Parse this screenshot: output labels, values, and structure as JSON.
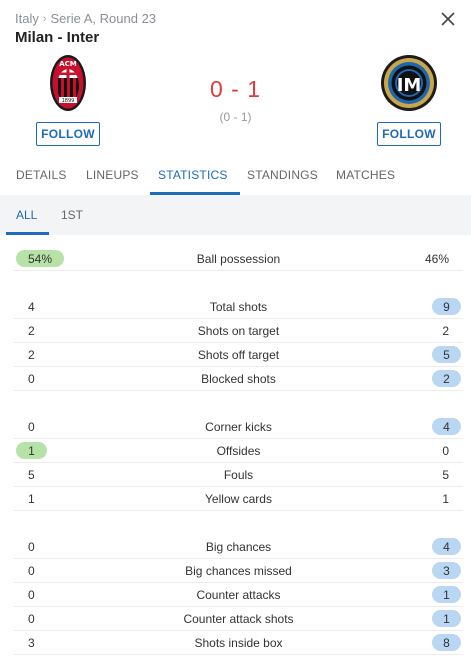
{
  "header": {
    "country": "Italy",
    "competition": "Serie A, Round 23",
    "match_title": "Milan - Inter"
  },
  "score": {
    "main": "0 - 1",
    "halftime": "(0 - 1)"
  },
  "teams": {
    "home": {
      "follow_label": "FOLLOW",
      "logo_text": "ACM",
      "logo_year": "1899"
    },
    "away": {
      "follow_label": "FOLLOW",
      "logo_text": "IM"
    }
  },
  "tabs": [
    {
      "label": "DETAILS"
    },
    {
      "label": "LINEUPS"
    },
    {
      "label": "STATISTICS"
    },
    {
      "label": "STANDINGS"
    },
    {
      "label": "MATCHES"
    }
  ],
  "subtabs": [
    {
      "label": "ALL"
    },
    {
      "label": "1ST"
    }
  ],
  "stats": [
    {
      "label": "Ball possession",
      "home": "54%",
      "away": "46%"
    },
    {
      "label": "Total shots",
      "home": "4",
      "away": "9"
    },
    {
      "label": "Shots on target",
      "home": "2",
      "away": "2"
    },
    {
      "label": "Shots off target",
      "home": "2",
      "away": "5"
    },
    {
      "label": "Blocked shots",
      "home": "0",
      "away": "2"
    },
    {
      "label": "Corner kicks",
      "home": "0",
      "away": "4"
    },
    {
      "label": "Offsides",
      "home": "1",
      "away": "0"
    },
    {
      "label": "Fouls",
      "home": "5",
      "away": "5"
    },
    {
      "label": "Yellow cards",
      "home": "1",
      "away": "1"
    },
    {
      "label": "Big chances",
      "home": "0",
      "away": "4"
    },
    {
      "label": "Big chances missed",
      "home": "0",
      "away": "3"
    },
    {
      "label": "Counter attacks",
      "home": "0",
      "away": "1"
    },
    {
      "label": "Counter attack shots",
      "home": "0",
      "away": "1"
    },
    {
      "label": "Shots inside box",
      "home": "3",
      "away": "8"
    }
  ],
  "colors": {
    "accent": "#1e6bb8",
    "score": "#e03a3e",
    "home_highlight": "#b7e2a7",
    "away_highlight": "#b9d6f2"
  }
}
